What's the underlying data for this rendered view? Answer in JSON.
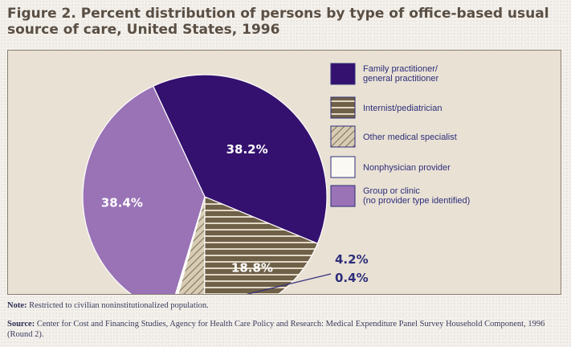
{
  "title": "Figure 2. Percent distribution of persons by type of office-based usual source of care, United States, 1996",
  "note": {
    "label": "Note:",
    "text": " Restricted to civilian noninstitutionalized population."
  },
  "source": {
    "label": "Source:",
    "text": " Center for Cost and Financing Studies, Agency for Health Care Policy and Research: Medical Expenditure Panel Survey Household Component, 1996 (Round 2)."
  },
  "colors": {
    "family": "#34116e",
    "internist": "#6f6048",
    "other": "#d8ccb4",
    "nonphysician": "#fbf9f4",
    "group": "#9a73b6"
  },
  "chart_data": {
    "type": "pie",
    "title": "Figure 2. Percent distribution of persons by type of office-based usual source of care, United States, 1996",
    "legend_position": "right",
    "slices": [
      {
        "label": "Family practitioner/ general practitioner",
        "legend_lines": [
          "Family practitioner/",
          "general practitioner"
        ],
        "value": 38.2,
        "value_label": "38.2%",
        "color": "#34116e",
        "pattern": "solid"
      },
      {
        "label": "Internist/pediatrician",
        "legend_lines": [
          "Internist/pediatrician"
        ],
        "value": 18.8,
        "value_label": "18.8%",
        "color": "#6f6048",
        "pattern": "horizontal-stripes"
      },
      {
        "label": "Other medical specialist",
        "legend_lines": [
          "Other medical specialist"
        ],
        "value": 4.2,
        "value_label": "4.2%",
        "color": "#d8ccb4",
        "pattern": "diagonal-hatch"
      },
      {
        "label": "Nonphysician provider",
        "legend_lines": [
          "Nonphysician provider"
        ],
        "value": 0.4,
        "value_label": "0.4%",
        "color": "#fbf9f4",
        "pattern": "solid"
      },
      {
        "label": "Group or clinic (no provider type identified)",
        "legend_lines": [
          "Group or clinic",
          "(no provider type identified)"
        ],
        "value": 38.4,
        "value_label": "38.4%",
        "color": "#9a73b6",
        "pattern": "solid"
      }
    ]
  }
}
